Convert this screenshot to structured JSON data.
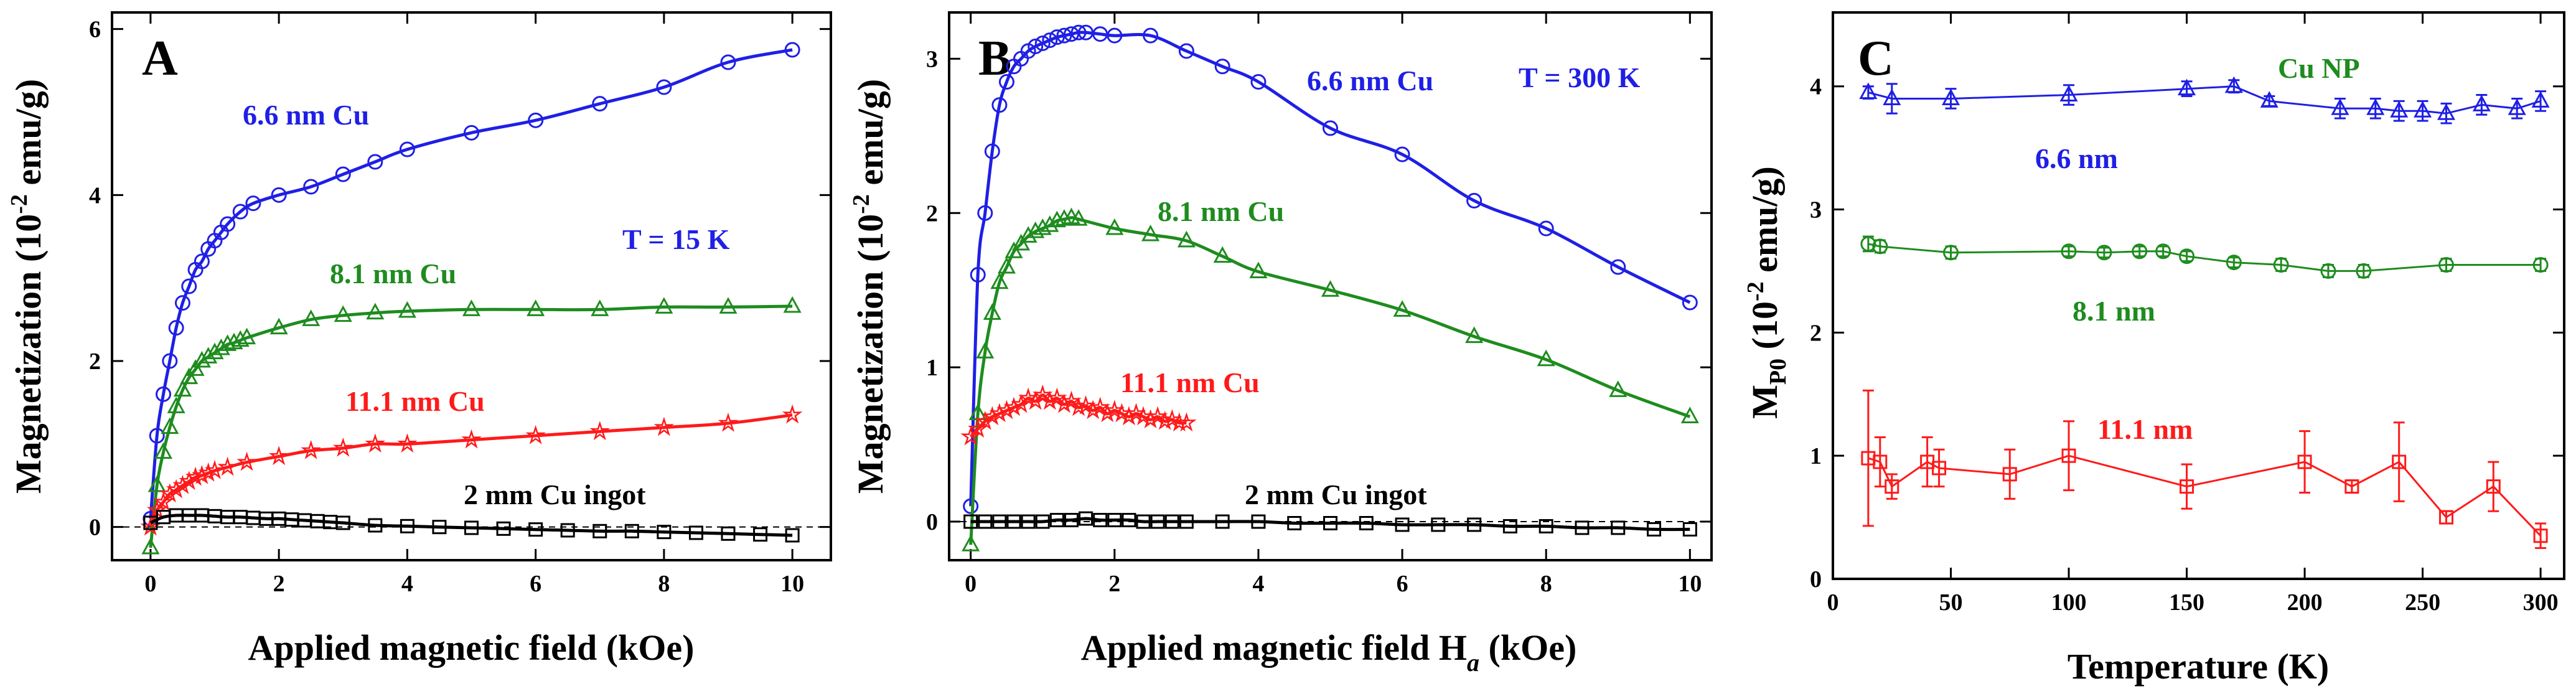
{
  "figure": {
    "colors": {
      "blue": "#1f1fe6",
      "green": "#1e8c1e",
      "red": "#ff1a1a",
      "black": "#000000"
    }
  },
  "chart_data": [
    {
      "type": "line",
      "panel": "A",
      "xlabel": "Applied magnetic field (kOe)",
      "ylabel": "Magnetization (10",
      "ylabel_sup": "-2",
      "ylabel_end": " emu/g)",
      "xlim": [
        -0.6,
        10.6
      ],
      "ylim": [
        -0.4,
        6.2
      ],
      "xticks": [
        0,
        2,
        4,
        6,
        8,
        10
      ],
      "yticks": [
        0,
        2,
        4,
        6
      ],
      "annotations": [
        {
          "text": "6.6 nm Cu",
          "color": "#1f1fe6"
        },
        {
          "text": "T = 15 K",
          "color": "#1f1fe6"
        },
        {
          "text": "8.1 nm Cu",
          "color": "#1e8c1e"
        },
        {
          "text": "11.1 nm Cu",
          "color": "#ff1a1a"
        },
        {
          "text": "2 mm Cu ingot",
          "color": "#000000"
        }
      ],
      "series": [
        {
          "name": "6.6 nm Cu",
          "color": "#1f1fe6",
          "marker": "circle",
          "x": [
            0,
            0.1,
            0.2,
            0.3,
            0.4,
            0.5,
            0.6,
            0.7,
            0.8,
            0.9,
            1.0,
            1.1,
            1.2,
            1.4,
            1.6,
            2.0,
            2.5,
            3.0,
            3.5,
            4.0,
            5.0,
            6.0,
            7.0,
            8.0,
            9.0,
            10.0
          ],
          "y": [
            0.1,
            1.1,
            1.6,
            2.0,
            2.4,
            2.7,
            2.9,
            3.1,
            3.2,
            3.35,
            3.45,
            3.55,
            3.65,
            3.8,
            3.9,
            4.0,
            4.1,
            4.25,
            4.4,
            4.55,
            4.75,
            4.9,
            5.1,
            5.3,
            5.6,
            5.75
          ]
        },
        {
          "name": "8.1 nm Cu",
          "color": "#1e8c1e",
          "marker": "triangle",
          "x": [
            0,
            0.1,
            0.2,
            0.3,
            0.4,
            0.5,
            0.6,
            0.7,
            0.8,
            0.9,
            1.0,
            1.1,
            1.2,
            1.3,
            1.4,
            1.5,
            2.0,
            2.5,
            3.0,
            3.5,
            4.0,
            5.0,
            6.0,
            7.0,
            8.0,
            9.0,
            10.0
          ],
          "y": [
            -0.25,
            0.5,
            0.9,
            1.2,
            1.45,
            1.65,
            1.8,
            1.9,
            2.0,
            2.05,
            2.1,
            2.15,
            2.2,
            2.22,
            2.25,
            2.28,
            2.4,
            2.5,
            2.55,
            2.58,
            2.6,
            2.62,
            2.62,
            2.62,
            2.65,
            2.65,
            2.66
          ]
        },
        {
          "name": "11.1 nm Cu",
          "color": "#ff1a1a",
          "marker": "star",
          "x": [
            0,
            0.1,
            0.2,
            0.3,
            0.4,
            0.5,
            0.6,
            0.7,
            0.8,
            0.9,
            1.0,
            1.2,
            1.5,
            2.0,
            2.5,
            3.0,
            3.5,
            4.0,
            5.0,
            6.0,
            7.0,
            8.0,
            9.0,
            10.0
          ],
          "y": [
            0.0,
            0.2,
            0.3,
            0.4,
            0.45,
            0.5,
            0.55,
            0.6,
            0.62,
            0.65,
            0.68,
            0.72,
            0.78,
            0.85,
            0.92,
            0.95,
            1.0,
            1.0,
            1.05,
            1.1,
            1.15,
            1.2,
            1.25,
            1.35
          ]
        },
        {
          "name": "2 mm Cu ingot",
          "color": "#000000",
          "marker": "square",
          "x": [
            0,
            0.2,
            0.4,
            0.6,
            0.8,
            1.0,
            1.2,
            1.4,
            1.6,
            1.8,
            2.0,
            2.2,
            2.4,
            2.6,
            2.8,
            3.0,
            3.5,
            4.0,
            4.5,
            5.0,
            5.5,
            6.0,
            6.5,
            7.0,
            7.5,
            8.0,
            8.5,
            9.0,
            9.5,
            10.0
          ],
          "y": [
            0.05,
            0.12,
            0.14,
            0.14,
            0.14,
            0.13,
            0.12,
            0.12,
            0.11,
            0.1,
            0.1,
            0.09,
            0.08,
            0.07,
            0.06,
            0.05,
            0.02,
            0.01,
            0.0,
            -0.01,
            -0.02,
            -0.03,
            -0.04,
            -0.05,
            -0.05,
            -0.06,
            -0.07,
            -0.08,
            -0.09,
            -0.1
          ]
        }
      ]
    },
    {
      "type": "line",
      "panel": "B",
      "xlabel": "Applied magnetic field H",
      "xlabel_sub": "a",
      "xlabel_end": " (kOe)",
      "ylabel": "Magnetization (10",
      "ylabel_sup": "-2",
      "ylabel_end": " emu/g)",
      "xlim": [
        -0.3,
        10.3
      ],
      "ylim": [
        -0.25,
        3.3
      ],
      "xticks": [
        0,
        2,
        4,
        6,
        8,
        10
      ],
      "yticks": [
        0,
        1,
        2,
        3
      ],
      "annotations": [
        {
          "text": "6.6 nm Cu",
          "color": "#1f1fe6"
        },
        {
          "text": "T = 300 K",
          "color": "#1f1fe6"
        },
        {
          "text": "8.1 nm Cu",
          "color": "#1e8c1e"
        },
        {
          "text": "11.1 nm Cu",
          "color": "#ff1a1a"
        },
        {
          "text": "2 mm Cu ingot",
          "color": "#000000"
        }
      ],
      "series": [
        {
          "name": "6.6 nm Cu",
          "color": "#1f1fe6",
          "marker": "circle",
          "x": [
            0,
            0.1,
            0.2,
            0.3,
            0.4,
            0.5,
            0.6,
            0.7,
            0.8,
            0.9,
            1.0,
            1.1,
            1.2,
            1.3,
            1.4,
            1.5,
            1.6,
            1.8,
            2.0,
            2.5,
            3.0,
            3.5,
            4.0,
            5.0,
            6.0,
            7.0,
            8.0,
            9.0,
            10.0
          ],
          "y": [
            0.1,
            1.6,
            2.0,
            2.4,
            2.7,
            2.85,
            2.95,
            3.0,
            3.05,
            3.08,
            3.1,
            3.12,
            3.14,
            3.15,
            3.16,
            3.17,
            3.17,
            3.16,
            3.15,
            3.15,
            3.05,
            2.95,
            2.85,
            2.55,
            2.38,
            2.08,
            1.9,
            1.65,
            1.42
          ]
        },
        {
          "name": "8.1 nm Cu",
          "color": "#1e8c1e",
          "marker": "triangle",
          "x": [
            0,
            0.1,
            0.2,
            0.3,
            0.4,
            0.5,
            0.6,
            0.7,
            0.8,
            0.9,
            1.0,
            1.1,
            1.2,
            1.3,
            1.4,
            1.5,
            2.0,
            2.5,
            3.0,
            3.5,
            4.0,
            5.0,
            6.0,
            7.0,
            8.0,
            9.0,
            10.0
          ],
          "y": [
            -0.15,
            0.7,
            1.1,
            1.35,
            1.55,
            1.65,
            1.75,
            1.8,
            1.85,
            1.88,
            1.9,
            1.92,
            1.95,
            1.96,
            1.97,
            1.96,
            1.9,
            1.86,
            1.82,
            1.72,
            1.62,
            1.5,
            1.37,
            1.2,
            1.05,
            0.85,
            0.68
          ]
        },
        {
          "name": "11.1 nm Cu",
          "color": "#ff1a1a",
          "marker": "star",
          "x": [
            0,
            0.1,
            0.2,
            0.3,
            0.4,
            0.5,
            0.6,
            0.7,
            0.8,
            0.9,
            1.0,
            1.1,
            1.2,
            1.3,
            1.4,
            1.5,
            1.6,
            1.7,
            1.8,
            1.9,
            2.0,
            2.1,
            2.2,
            2.3,
            2.4,
            2.5,
            2.6,
            2.7,
            2.8,
            2.9,
            3.0
          ],
          "y": [
            0.55,
            0.6,
            0.65,
            0.68,
            0.7,
            0.72,
            0.74,
            0.76,
            0.8,
            0.78,
            0.82,
            0.78,
            0.8,
            0.76,
            0.78,
            0.74,
            0.75,
            0.72,
            0.74,
            0.7,
            0.72,
            0.7,
            0.68,
            0.7,
            0.68,
            0.66,
            0.68,
            0.65,
            0.66,
            0.64,
            0.64
          ]
        },
        {
          "name": "2 mm Cu ingot",
          "color": "#000000",
          "marker": "square",
          "x": [
            0,
            0.2,
            0.4,
            0.6,
            0.8,
            1.0,
            1.2,
            1.4,
            1.6,
            1.8,
            2.0,
            2.2,
            2.4,
            2.6,
            2.8,
            3.0,
            3.5,
            4.0,
            4.5,
            5.0,
            5.5,
            6.0,
            6.5,
            7.0,
            7.5,
            8.0,
            8.5,
            9.0,
            9.5,
            10.0
          ],
          "y": [
            0.0,
            0.0,
            0.0,
            0.0,
            0.0,
            0.0,
            0.01,
            0.01,
            0.02,
            0.01,
            0.01,
            0.01,
            0.0,
            0.0,
            0.0,
            0.0,
            0.0,
            0.0,
            -0.01,
            -0.01,
            -0.01,
            -0.02,
            -0.02,
            -0.02,
            -0.03,
            -0.03,
            -0.04,
            -0.04,
            -0.05,
            -0.05
          ]
        }
      ]
    },
    {
      "type": "line",
      "panel": "C",
      "xlabel": "Temperature (K)",
      "ylabel": "M",
      "ylabel_sub": "P0",
      "ylabel_mid": " (10",
      "ylabel_sup": "-2",
      "ylabel_end": " emu/g)",
      "xlim": [
        0,
        310
      ],
      "ylim": [
        0,
        4.6
      ],
      "xticks": [
        0,
        50,
        100,
        150,
        200,
        250,
        300
      ],
      "yticks": [
        0,
        1,
        2,
        3,
        4
      ],
      "annotations": [
        {
          "text": "Cu NP",
          "color": "#1e8c1e"
        },
        {
          "text": "6.6 nm",
          "color": "#1f1fe6"
        },
        {
          "text": "8.1 nm",
          "color": "#1e8c1e"
        },
        {
          "text": "11.1 nm",
          "color": "#ff1a1a"
        }
      ],
      "series": [
        {
          "name": "6.6 nm",
          "color": "#1f1fe6",
          "marker": "triangle",
          "x": [
            15,
            25,
            50,
            100,
            150,
            170,
            185,
            215,
            230,
            240,
            250,
            260,
            275,
            290,
            300
          ],
          "y": [
            3.95,
            3.9,
            3.9,
            3.93,
            3.98,
            4.0,
            3.88,
            3.82,
            3.82,
            3.8,
            3.8,
            3.78,
            3.85,
            3.82,
            3.88
          ],
          "err": [
            0.05,
            0.12,
            0.08,
            0.08,
            0.06,
            0.05,
            0.04,
            0.08,
            0.08,
            0.08,
            0.08,
            0.08,
            0.08,
            0.08,
            0.08
          ]
        },
        {
          "name": "8.1 nm",
          "color": "#1e8c1e",
          "marker": "circle",
          "x": [
            15,
            20,
            50,
            100,
            115,
            130,
            140,
            150,
            170,
            190,
            210,
            225,
            260,
            300
          ],
          "y": [
            2.72,
            2.7,
            2.65,
            2.66,
            2.65,
            2.66,
            2.66,
            2.62,
            2.57,
            2.55,
            2.5,
            2.5,
            2.55,
            2.55
          ],
          "err": [
            0.06,
            0.05,
            0.05,
            0.04,
            0.04,
            0.04,
            0.04,
            0.04,
            0.04,
            0.05,
            0.05,
            0.05,
            0.05,
            0.05
          ]
        },
        {
          "name": "11.1 nm",
          "color": "#ff1a1a",
          "marker": "square",
          "x": [
            15,
            20,
            25,
            40,
            45,
            75,
            100,
            150,
            200,
            220,
            240,
            260,
            280,
            300
          ],
          "y": [
            0.98,
            0.95,
            0.75,
            0.95,
            0.9,
            0.85,
            1.0,
            0.75,
            0.95,
            0.75,
            0.95,
            0.5,
            0.75,
            0.35
          ],
          "err": [
            0.55,
            0.2,
            0.1,
            0.2,
            0.15,
            0.2,
            0.28,
            0.18,
            0.25,
            0.05,
            0.32,
            0.05,
            0.2,
            0.1
          ]
        }
      ]
    }
  ]
}
